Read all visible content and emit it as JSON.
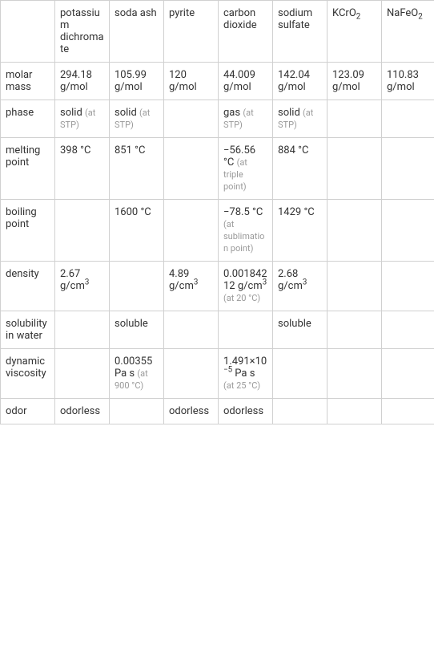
{
  "columns": [
    "",
    "potassium dichromate",
    "soda ash",
    "pyrite",
    "carbon dioxide",
    "sodium sulfate",
    "KCrO₂",
    "NaFeO₂"
  ],
  "rows": [
    {
      "header": "molar mass",
      "cells": [
        "294.18 g/mol",
        "105.99 g/mol",
        "120 g/mol",
        "44.009 g/mol",
        "142.04 g/mol",
        "123.09 g/mol",
        "110.83 g/mol"
      ]
    },
    {
      "header": "phase",
      "cells": [
        {
          "main": "solid",
          "note": "(at STP)"
        },
        {
          "main": "solid",
          "note": "(at STP)"
        },
        "",
        {
          "main": "gas",
          "note": "(at STP)"
        },
        {
          "main": "solid",
          "note": "(at STP)"
        },
        "",
        ""
      ]
    },
    {
      "header": "melting point",
      "cells": [
        "398 °C",
        "851 °C",
        "",
        {
          "main": "−56.56 °C",
          "note": "(at triple point)"
        },
        "884 °C",
        "",
        ""
      ]
    },
    {
      "header": "boiling point",
      "cells": [
        "",
        "1600 °C",
        "",
        {
          "main": "−78.5 °C",
          "note": "(at sublimation point)"
        },
        "1429 °C",
        "",
        ""
      ]
    },
    {
      "header": "density",
      "cells": [
        "2.67 g/cm³",
        "",
        "4.89 g/cm³",
        {
          "main": "0.00184212 g/cm³",
          "note": "(at 20 °C)"
        },
        "2.68 g/cm³",
        "",
        ""
      ]
    },
    {
      "header": "solubility in water",
      "cells": [
        "",
        "soluble",
        "",
        "",
        "soluble",
        "",
        ""
      ]
    },
    {
      "header": "dynamic viscosity",
      "cells": [
        "",
        {
          "main": "0.00355 Pa s",
          "note": "(at 900 °C)"
        },
        "",
        {
          "main": "1.491×10⁻⁵ Pa s",
          "note": "(at 25 °C)"
        },
        "",
        "",
        ""
      ]
    },
    {
      "header": "odor",
      "cells": [
        "odorless",
        "",
        "odorless",
        "odorless",
        "",
        "",
        ""
      ]
    }
  ],
  "colors": {
    "border": "#d0d0d0",
    "text": "#333333",
    "note": "#999999",
    "background": "#ffffff"
  }
}
